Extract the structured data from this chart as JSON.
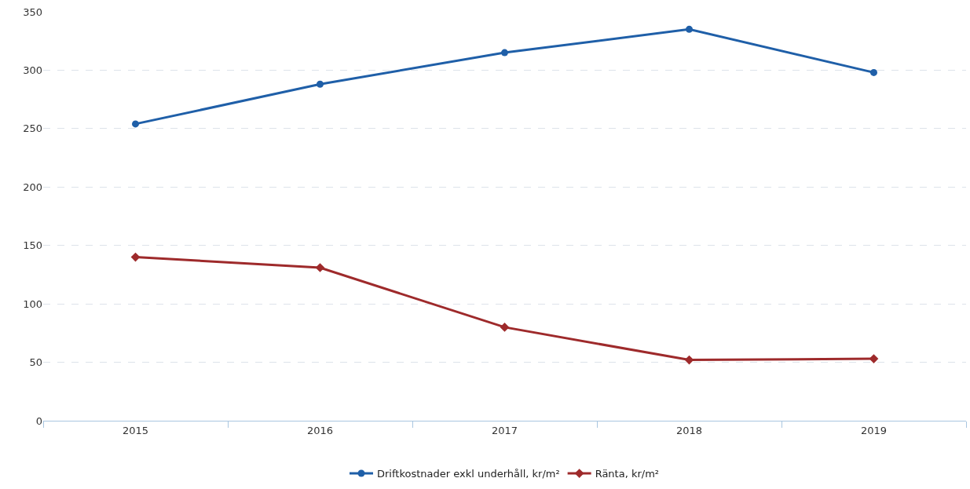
{
  "chart_data": {
    "type": "line",
    "categories": [
      "2015",
      "2016",
      "2017",
      "2018",
      "2019"
    ],
    "series": [
      {
        "name": "Driftkostnader exkl underhåll, kr/m²",
        "color": "#1f5fa8",
        "marker": "circle",
        "values": [
          254,
          288,
          315,
          335,
          298
        ]
      },
      {
        "name": "Ränta, kr/m²",
        "color": "#9e2a2b",
        "marker": "diamond",
        "values": [
          140,
          131,
          80,
          52,
          53
        ]
      }
    ],
    "ylim": [
      0,
      350
    ],
    "yticks": [
      0,
      50,
      100,
      150,
      200,
      250,
      300,
      350
    ],
    "grid": "y",
    "legend": "bottom",
    "line_style": "solid"
  }
}
